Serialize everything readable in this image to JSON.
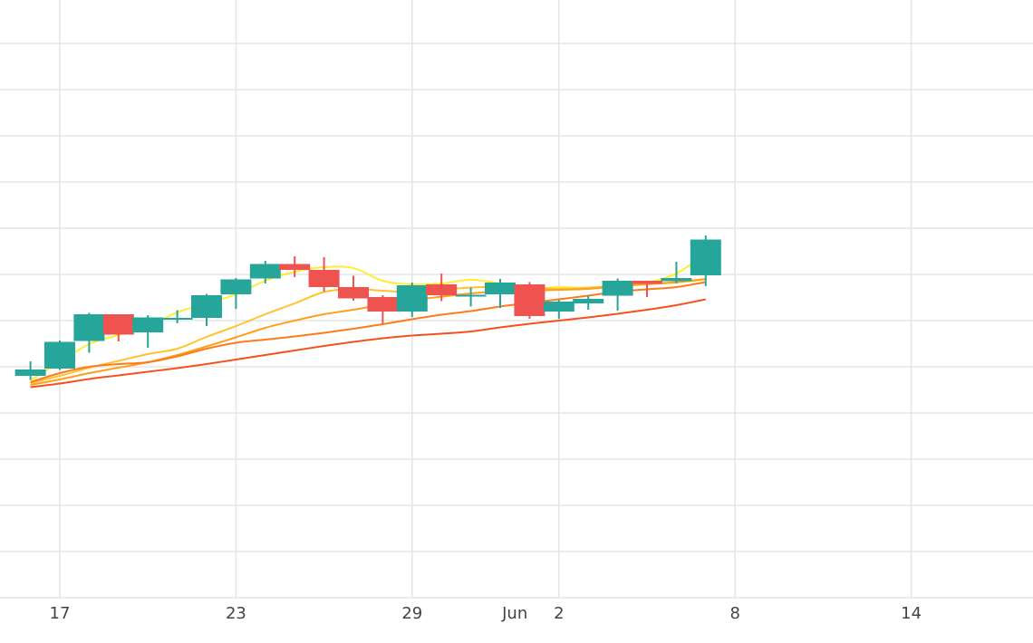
{
  "chart_data": {
    "type": "candlestick",
    "grid": true,
    "x_ticks": [
      {
        "label": "17",
        "day": 17
      },
      {
        "label": "23",
        "day": 23
      },
      {
        "label": "29",
        "day": 29
      },
      {
        "label": "Jun",
        "day": 32.5
      },
      {
        "label": "2",
        "day": 34
      },
      {
        "label": "8",
        "day": 40
      },
      {
        "label": "14",
        "day": 46
      }
    ],
    "colors": {
      "up": "#26a69a",
      "down": "#ef5350",
      "ma_lines": [
        "#ffee33",
        "#ffc32b",
        "#ff9f1c",
        "#ff7a1a",
        "#f4511e"
      ],
      "grid": "#e6e6e6"
    },
    "candles": [
      {
        "day": 16,
        "open": 49.0,
        "close": 50.4,
        "high": 52.2,
        "low": 48.1
      },
      {
        "day": 17,
        "open": 50.6,
        "close": 56.5,
        "high": 56.8,
        "low": 50.3
      },
      {
        "day": 18,
        "open": 56.7,
        "close": 62.6,
        "high": 62.9,
        "low": 54.1
      },
      {
        "day": 19,
        "open": 62.6,
        "close": 58.1,
        "high": 62.6,
        "low": 56.6
      },
      {
        "day": 20,
        "open": 58.6,
        "close": 61.9,
        "high": 62.4,
        "low": 55.2
      },
      {
        "day": 21,
        "open": 61.8,
        "close": 61.8,
        "high": 63.5,
        "low": 60.6
      },
      {
        "day": 22,
        "open": 61.8,
        "close": 66.8,
        "high": 67.1,
        "low": 60.0
      },
      {
        "day": 23,
        "open": 67.0,
        "close": 70.3,
        "high": 70.6,
        "low": 63.8
      },
      {
        "day": 24,
        "open": 70.5,
        "close": 73.7,
        "high": 74.4,
        "low": 69.4
      },
      {
        "day": 25,
        "open": 73.7,
        "close": 72.4,
        "high": 75.4,
        "low": 70.8
      },
      {
        "day": 26,
        "open": 72.4,
        "close": 68.6,
        "high": 75.2,
        "low": 67.6
      },
      {
        "day": 27,
        "open": 68.6,
        "close": 66.1,
        "high": 71.1,
        "low": 65.6
      },
      {
        "day": 28,
        "open": 66.4,
        "close": 63.2,
        "high": 66.8,
        "low": 60.6
      },
      {
        "day": 29,
        "open": 63.2,
        "close": 69.0,
        "high": 69.6,
        "low": 62.0
      },
      {
        "day": 30,
        "open": 69.2,
        "close": 66.8,
        "high": 71.6,
        "low": 65.5
      },
      {
        "day": 31,
        "open": 66.5,
        "close": 66.9,
        "high": 68.5,
        "low": 64.3
      },
      {
        "day": 32,
        "open": 67.0,
        "close": 69.6,
        "high": 70.4,
        "low": 64.0
      },
      {
        "day": 33,
        "open": 69.2,
        "close": 62.2,
        "high": 69.7,
        "low": 61.6
      },
      {
        "day": 34,
        "open": 63.2,
        "close": 65.4,
        "high": 65.8,
        "low": 61.6
      },
      {
        "day": 35,
        "open": 65.0,
        "close": 66.0,
        "high": 66.7,
        "low": 63.6
      },
      {
        "day": 36,
        "open": 66.7,
        "close": 70.0,
        "high": 70.5,
        "low": 63.4
      },
      {
        "day": 37,
        "open": 70.0,
        "close": 69.3,
        "high": 70.0,
        "low": 66.4
      },
      {
        "day": 38,
        "open": 69.9,
        "close": 70.6,
        "high": 74.2,
        "low": 69.4
      },
      {
        "day": 39,
        "open": 71.2,
        "close": 79.1,
        "high": 80.0,
        "low": 68.8
      }
    ],
    "moving_averages": [
      {
        "values": [
          48.0,
          52.0,
          56.0,
          58.0,
          60.0,
          63.0,
          65.0,
          67.0,
          70.0,
          72.0,
          73.0,
          72.8,
          70.0,
          69.2,
          69.4,
          70.2,
          69.4,
          68.2,
          68.6,
          68.4,
          69.2,
          69.6,
          71.6,
          76.0
        ]
      },
      {
        "values": [
          47.4,
          49.0,
          50.8,
          52.3,
          53.8,
          55.0,
          57.6,
          60.0,
          62.6,
          65.0,
          67.5,
          68.2,
          67.8,
          67.5,
          68.0,
          68.5,
          68.7,
          68.6,
          68.2,
          68.5,
          68.8,
          69.2,
          69.6,
          70.3
        ]
      },
      {
        "values": [
          47.0,
          48.2,
          49.6,
          50.8,
          52.0,
          53.6,
          55.5,
          57.5,
          59.6,
          61.2,
          62.6,
          63.6,
          64.7,
          65.7,
          66.5,
          67.2,
          67.7,
          67.8,
          68.0,
          68.2,
          68.8,
          69.3,
          69.7,
          70.4
        ]
      },
      {
        "values": [
          47.6,
          49.6,
          51.0,
          51.6,
          52.0,
          53.3,
          55.0,
          56.3,
          57.0,
          57.7,
          58.5,
          59.4,
          60.4,
          61.5,
          62.5,
          63.3,
          64.3,
          65.1,
          65.9,
          66.7,
          67.6,
          68.1,
          68.6,
          69.7
        ]
      },
      {
        "values": [
          46.5,
          47.3,
          48.3,
          49.1,
          49.9,
          50.7,
          51.6,
          52.6,
          53.6,
          54.6,
          55.6,
          56.5,
          57.3,
          57.9,
          58.3,
          58.8,
          59.7,
          60.5,
          61.2,
          61.9,
          62.7,
          63.6,
          64.6,
          65.9
        ]
      }
    ]
  }
}
